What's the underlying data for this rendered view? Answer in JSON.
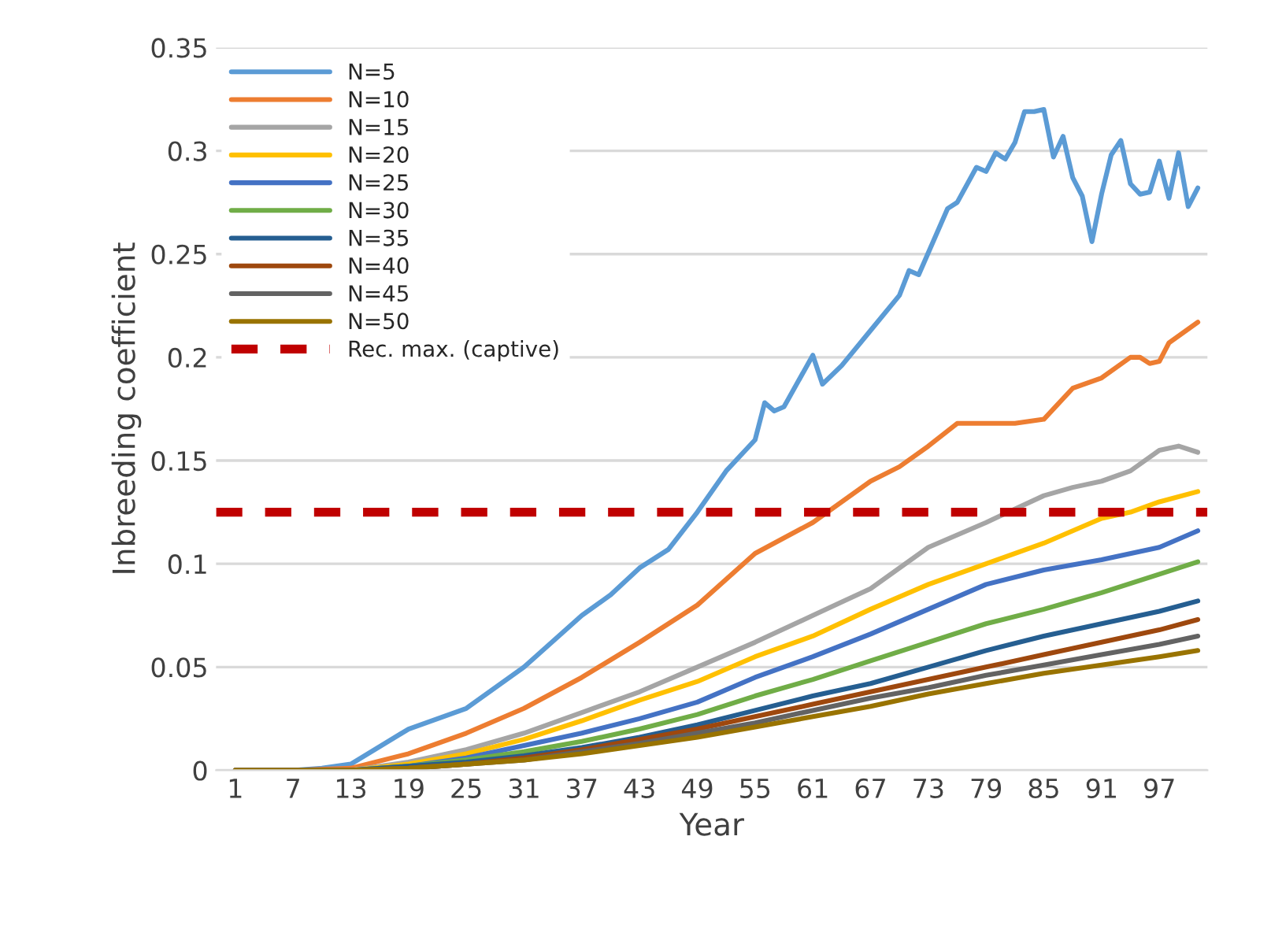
{
  "chart_data": {
    "type": "line",
    "xlabel": "Year",
    "ylabel": "Inbreeding coefficient",
    "xlim": [
      -1,
      102
    ],
    "xticks": [
      1,
      7,
      13,
      19,
      25,
      31,
      37,
      43,
      49,
      55,
      61,
      67,
      73,
      79,
      85,
      91,
      97
    ],
    "ylim": [
      0,
      0.35
    ],
    "yticks": [
      0,
      0.05,
      0.1,
      0.15,
      0.2,
      0.25,
      0.3,
      0.35
    ],
    "grid": "y",
    "legend": "top left",
    "marker": "none",
    "line_style": "solid",
    "series": [
      {
        "name": "N=5",
        "color": "#5b9bd5",
        "x": [
          1,
          7,
          10,
          13,
          19,
          25,
          31,
          37,
          40,
          43,
          46,
          49,
          52,
          55,
          56,
          57,
          58,
          61,
          62,
          64,
          67,
          70,
          71,
          72,
          75,
          76,
          78,
          79,
          80,
          81,
          82,
          83,
          84,
          85,
          86,
          87,
          88,
          89,
          90,
          91,
          92,
          93,
          94,
          95,
          96,
          97,
          98,
          99,
          100,
          101
        ],
        "values": [
          0,
          0,
          0.001,
          0.003,
          0.02,
          0.03,
          0.05,
          0.075,
          0.085,
          0.098,
          0.107,
          0.125,
          0.145,
          0.16,
          0.178,
          0.174,
          0.176,
          0.201,
          0.187,
          0.196,
          0.213,
          0.23,
          0.242,
          0.24,
          0.272,
          0.275,
          0.292,
          0.29,
          0.299,
          0.296,
          0.304,
          0.319,
          0.319,
          0.32,
          0.297,
          0.307,
          0.287,
          0.278,
          0.256,
          0.279,
          0.298,
          0.305,
          0.284,
          0.279,
          0.28,
          0.295,
          0.277,
          0.299,
          0.273,
          0.282
        ]
      },
      {
        "name": "N=10",
        "color": "#ed7d31",
        "x": [
          1,
          7,
          13,
          19,
          25,
          31,
          37,
          43,
          49,
          55,
          61,
          67,
          70,
          73,
          76,
          79,
          82,
          85,
          88,
          91,
          94,
          95,
          96,
          97,
          98,
          101
        ],
        "values": [
          0,
          0,
          0.001,
          0.008,
          0.018,
          0.03,
          0.045,
          0.062,
          0.08,
          0.105,
          0.12,
          0.14,
          0.147,
          0.157,
          0.168,
          0.168,
          0.168,
          0.17,
          0.185,
          0.19,
          0.2,
          0.2,
          0.197,
          0.198,
          0.207,
          0.217
        ]
      },
      {
        "name": "N=15",
        "color": "#a5a5a5",
        "x": [
          1,
          7,
          13,
          19,
          25,
          31,
          37,
          43,
          49,
          55,
          61,
          67,
          73,
          79,
          85,
          88,
          91,
          94,
          97,
          99,
          101
        ],
        "values": [
          0,
          0,
          0,
          0.004,
          0.01,
          0.018,
          0.028,
          0.038,
          0.05,
          0.062,
          0.075,
          0.088,
          0.108,
          0.12,
          0.133,
          0.137,
          0.14,
          0.145,
          0.155,
          0.157,
          0.154
        ]
      },
      {
        "name": "N=20",
        "color": "#ffc000",
        "x": [
          1,
          7,
          13,
          19,
          25,
          31,
          37,
          43,
          49,
          55,
          61,
          67,
          73,
          79,
          85,
          91,
          94,
          97,
          101
        ],
        "values": [
          0,
          0,
          0,
          0.003,
          0.008,
          0.015,
          0.024,
          0.034,
          0.043,
          0.055,
          0.065,
          0.078,
          0.09,
          0.1,
          0.11,
          0.122,
          0.125,
          0.13,
          0.135
        ]
      },
      {
        "name": "N=25",
        "color": "#4472c4",
        "x": [
          1,
          7,
          13,
          19,
          25,
          31,
          37,
          43,
          49,
          55,
          61,
          67,
          73,
          79,
          85,
          91,
          97,
          101
        ],
        "values": [
          0,
          0,
          0,
          0.002,
          0.006,
          0.012,
          0.018,
          0.025,
          0.033,
          0.045,
          0.055,
          0.066,
          0.078,
          0.09,
          0.097,
          0.102,
          0.108,
          0.116
        ]
      },
      {
        "name": "N=30",
        "color": "#70ad47",
        "x": [
          1,
          7,
          13,
          19,
          25,
          31,
          37,
          43,
          49,
          55,
          61,
          67,
          73,
          79,
          85,
          91,
          97,
          101
        ],
        "values": [
          0,
          0,
          0,
          0.002,
          0.005,
          0.009,
          0.014,
          0.02,
          0.027,
          0.036,
          0.044,
          0.053,
          0.062,
          0.071,
          0.078,
          0.086,
          0.095,
          0.101
        ]
      },
      {
        "name": "N=35",
        "color": "#255e91",
        "x": [
          1,
          7,
          13,
          19,
          25,
          31,
          37,
          43,
          49,
          55,
          61,
          67,
          73,
          79,
          85,
          91,
          97,
          101
        ],
        "values": [
          0,
          0,
          0,
          0.002,
          0.004,
          0.007,
          0.011,
          0.016,
          0.022,
          0.029,
          0.036,
          0.042,
          0.05,
          0.058,
          0.065,
          0.071,
          0.077,
          0.082
        ]
      },
      {
        "name": "N=40",
        "color": "#9e480e",
        "x": [
          1,
          7,
          13,
          19,
          25,
          31,
          37,
          43,
          49,
          55,
          61,
          67,
          73,
          79,
          85,
          91,
          97,
          101
        ],
        "values": [
          0,
          0,
          0,
          0.001,
          0.003,
          0.006,
          0.01,
          0.015,
          0.02,
          0.026,
          0.032,
          0.038,
          0.044,
          0.05,
          0.056,
          0.062,
          0.068,
          0.073
        ]
      },
      {
        "name": "N=45",
        "color": "#636363",
        "x": [
          1,
          7,
          13,
          19,
          25,
          31,
          37,
          43,
          49,
          55,
          61,
          67,
          73,
          79,
          85,
          91,
          97,
          101
        ],
        "values": [
          0,
          0,
          0,
          0.001,
          0.003,
          0.005,
          0.009,
          0.013,
          0.018,
          0.023,
          0.029,
          0.035,
          0.04,
          0.046,
          0.051,
          0.056,
          0.061,
          0.065
        ]
      },
      {
        "name": "N=50",
        "color": "#997300",
        "x": [
          1,
          7,
          13,
          19,
          25,
          31,
          37,
          43,
          49,
          55,
          61,
          67,
          73,
          79,
          85,
          91,
          97,
          101
        ],
        "values": [
          0,
          0,
          0,
          0.001,
          0.003,
          0.005,
          0.008,
          0.012,
          0.016,
          0.021,
          0.026,
          0.031,
          0.037,
          0.042,
          0.047,
          0.051,
          0.055,
          0.058
        ]
      }
    ],
    "ref_lines": [
      {
        "axis": "y",
        "value": 0.125,
        "label": "Rec. max. (captive)",
        "color": "#c00000",
        "line_style": "dashed"
      }
    ]
  }
}
